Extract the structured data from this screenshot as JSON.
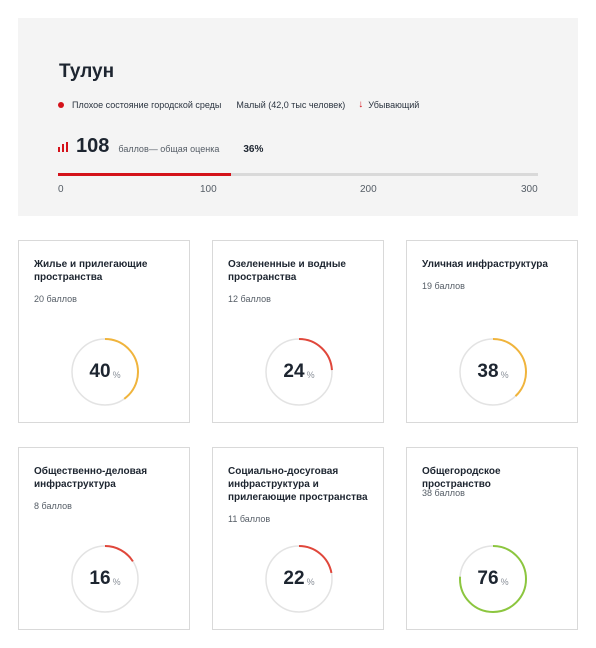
{
  "city": {
    "name": "Тулун",
    "status": "Плохое состояние городской среды",
    "size": "Малый (42,0 тыс человек)",
    "trend": "Убывающий",
    "status_color": "#d4121a"
  },
  "score": {
    "value": "108",
    "label": "баллов— общая оценка",
    "percent": "36%",
    "fraction_of_max": 0.36,
    "ticks": [
      "0",
      "100",
      "200",
      "300"
    ]
  },
  "colors": {
    "accent": "#d4121a",
    "gauge_red": "#e0473b",
    "gauge_yellow": "#f0b43c",
    "gauge_green": "#8cc63f",
    "gauge_track": "#e3e3e3"
  },
  "cards": [
    {
      "title": "Жилье и прилегающие пространства",
      "points": "20 баллов",
      "value": "40",
      "pct": "%",
      "level": 0.4,
      "color": "#f0b43c"
    },
    {
      "title": "Озелененные и водные пространства",
      "points": "12 баллов",
      "value": "24",
      "pct": "%",
      "level": 0.24,
      "color": "#e0473b"
    },
    {
      "title": "Уличная инфраструктура",
      "points": "19 баллов",
      "value": "38",
      "pct": "%",
      "level": 0.38,
      "color": "#f0b43c"
    },
    {
      "title": "Общественно-деловая инфраструктура",
      "points": "8 баллов",
      "value": "16",
      "pct": "%",
      "level": 0.16,
      "color": "#e0473b"
    },
    {
      "title": "Социально-досуговая инфраструктура и прилегающие пространства",
      "points": "11 баллов",
      "value": "22",
      "pct": "%",
      "level": 0.22,
      "color": "#e0473b"
    },
    {
      "title": "Общегородское пространство",
      "points": "38 баллов",
      "value": "76",
      "pct": "%",
      "level": 0.76,
      "color": "#8cc63f"
    }
  ]
}
